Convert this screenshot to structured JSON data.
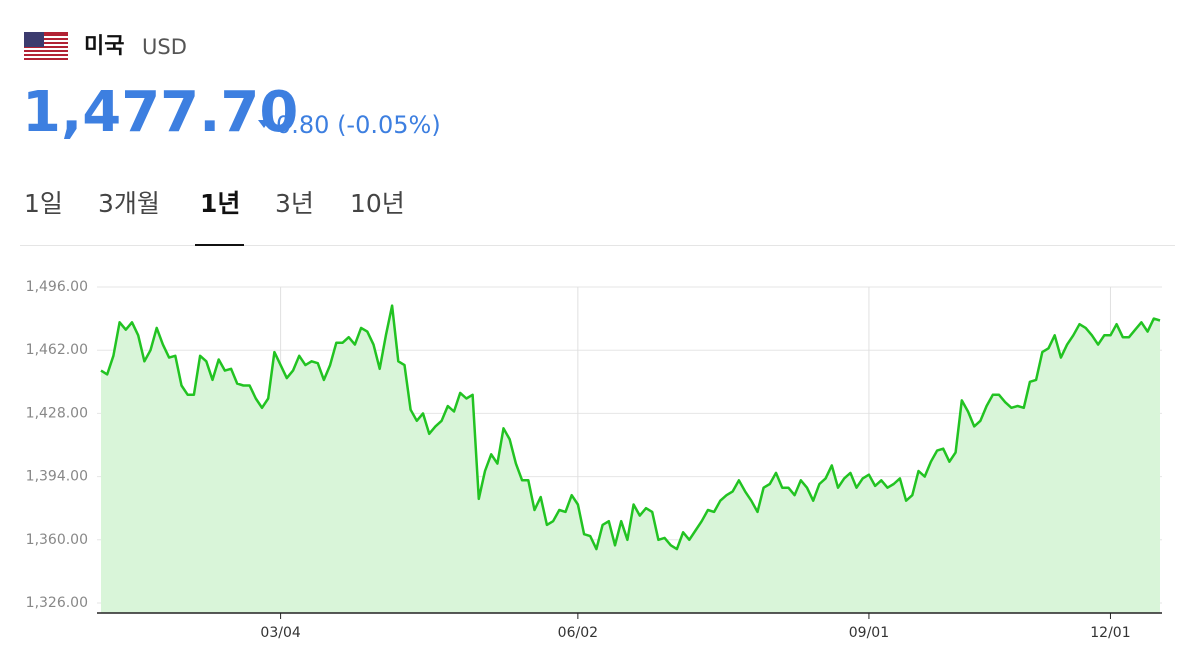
{
  "header": {
    "country": "미국",
    "currency": "USD",
    "price": "1,477.70",
    "change": "0.80 (-0.05%)"
  },
  "tabs": [
    "1일",
    "3개월",
    "1년",
    "3년",
    "10년"
  ],
  "chart_data": {
    "type": "line",
    "color": "#22c322",
    "fill": "#d9f5d9",
    "grid": true,
    "ylim": [
      1320.6,
      1496
    ],
    "yticks": [
      {
        "value": 1326,
        "label": "1,326.00"
      },
      {
        "value": 1360,
        "label": "1,360.00"
      },
      {
        "value": 1394,
        "label": "1,394.00"
      },
      {
        "value": 1428,
        "label": "1,428.00"
      },
      {
        "value": 1462,
        "label": "1,462.00"
      },
      {
        "value": 1496,
        "label": "1,496.00"
      }
    ],
    "categories": [
      null,
      null,
      null,
      null,
      null,
      null,
      null,
      null,
      null,
      null,
      null,
      null,
      null,
      null,
      null,
      null,
      null,
      null,
      null,
      null,
      null,
      null,
      null,
      null,
      null,
      null,
      null,
      null,
      null,
      "03/04",
      null,
      null,
      null,
      null,
      null,
      null,
      null,
      null,
      null,
      null,
      null,
      null,
      null,
      null,
      null,
      null,
      null,
      null,
      null,
      null,
      null,
      null,
      null,
      null,
      null,
      null,
      null,
      null,
      null,
      null,
      null,
      null,
      null,
      null,
      null,
      null,
      null,
      null,
      null,
      null,
      null,
      null,
      null,
      null,
      null,
      null,
      null,
      "06/02",
      null,
      null,
      null,
      null,
      null,
      null,
      null,
      null,
      null,
      null,
      null,
      null,
      null,
      null,
      null,
      null,
      null,
      null,
      null,
      null,
      null,
      null,
      null,
      null,
      null,
      null,
      null,
      null,
      null,
      null,
      null,
      null,
      null,
      null,
      null,
      null,
      null,
      null,
      null,
      null,
      null,
      null,
      null,
      null,
      null,
      null,
      "09/01",
      null,
      null,
      null,
      null,
      null,
      null,
      null,
      null,
      null,
      null,
      null,
      null,
      null,
      null,
      null,
      null,
      null,
      null,
      null,
      null,
      null,
      null,
      null,
      null,
      null,
      null,
      null,
      null,
      null,
      null,
      null,
      null,
      null,
      null,
      null,
      null,
      null,
      null,
      "12/01",
      null,
      null,
      null,
      null,
      null,
      null,
      null,
      null
    ],
    "values": [
      1451,
      1449,
      1459,
      1477,
      1473,
      1477,
      1470,
      1456,
      1462,
      1474,
      1465,
      1458,
      1459,
      1443,
      1438,
      1438,
      1459,
      1456,
      1446,
      1457,
      1451,
      1452,
      1444,
      1443,
      1443,
      1436,
      1431,
      1436,
      1461,
      1454,
      1447,
      1451,
      1459,
      1454,
      1456,
      1455,
      1446,
      1454,
      1466,
      1466,
      1469,
      1465,
      1474,
      1472,
      1465,
      1452,
      1470,
      1486,
      1456,
      1454,
      1430,
      1424,
      1428,
      1417,
      1421,
      1424,
      1432,
      1429,
      1439,
      1436,
      1438,
      1382,
      1397,
      1406,
      1401,
      1420,
      1414,
      1401,
      1392,
      1392,
      1376,
      1383,
      1368,
      1370,
      1376,
      1375,
      1384,
      1379,
      1363,
      1362,
      1355,
      1368,
      1370,
      1357,
      1370,
      1360,
      1379,
      1373,
      1377,
      1375,
      1360,
      1361,
      1357,
      1355,
      1364,
      1360,
      1365,
      1370,
      1376,
      1375,
      1381,
      1384,
      1386,
      1392,
      1386,
      1381,
      1375,
      1388,
      1390,
      1396,
      1388,
      1388,
      1384,
      1392,
      1388,
      1381,
      1390,
      1393,
      1400,
      1388,
      1393,
      1396,
      1388,
      1393,
      1395,
      1389,
      1392,
      1388,
      1390,
      1393,
      1381,
      1384,
      1397,
      1394,
      1402,
      1408,
      1409,
      1402,
      1407,
      1435,
      1429,
      1421,
      1424,
      1432,
      1438,
      1438,
      1434,
      1431,
      1432,
      1431,
      1445,
      1446,
      1461,
      1463,
      1470,
      1458,
      1465,
      1470,
      1476,
      1474,
      1470,
      1465,
      1470,
      1470,
      1476,
      1469,
      1469,
      1473,
      1477,
      1472,
      1479,
      1478
    ]
  }
}
